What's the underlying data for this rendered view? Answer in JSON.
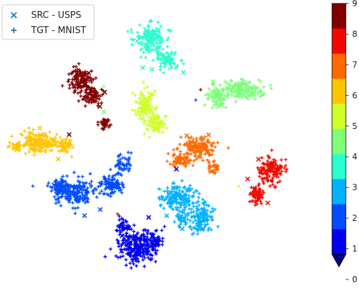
{
  "chart_data": {
    "type": "scatter",
    "title": "",
    "xlabel": "",
    "ylabel": "",
    "axes_visible": false,
    "legend": {
      "placement": "top-left",
      "entries": [
        {
          "label": "SRC - USPS",
          "marker": "x",
          "color": "#1f77b4"
        },
        {
          "label": "TGT - MNIST",
          "marker": "+",
          "color": "#1f77b4"
        }
      ]
    },
    "colorbar": {
      "colormap": "jet",
      "discrete_levels": 10,
      "ticks": [
        "0",
        "1",
        "2",
        "3",
        "4",
        "5",
        "6",
        "7",
        "8",
        "9"
      ],
      "range": [
        0,
        9
      ],
      "extend": "min",
      "colors": [
        "#000080",
        "#0000f1",
        "#004dff",
        "#00b1ff",
        "#29ffce",
        "#7dff7a",
        "#ceff29",
        "#ffc400",
        "#ff6800",
        "#f10800",
        "#800000"
      ]
    },
    "clusters": [
      {
        "label": 0,
        "center": [
          198,
          358
        ]
      },
      {
        "label": 1,
        "center": [
          130,
          278
        ]
      },
      {
        "label": 2,
        "center": [
          272,
          300
        ]
      },
      {
        "label": 3,
        "center": [
          222,
          68
        ]
      },
      {
        "label": 4,
        "center": [
          338,
          130
        ]
      },
      {
        "label": 5,
        "center": [
          215,
          162
        ]
      },
      {
        "label": 6,
        "center": [
          65,
          207
        ]
      },
      {
        "label": 7,
        "center": [
          282,
          222
        ]
      },
      {
        "label": 8,
        "center": [
          387,
          258
        ]
      },
      {
        "label": 9,
        "center": [
          122,
          130
        ]
      }
    ]
  }
}
